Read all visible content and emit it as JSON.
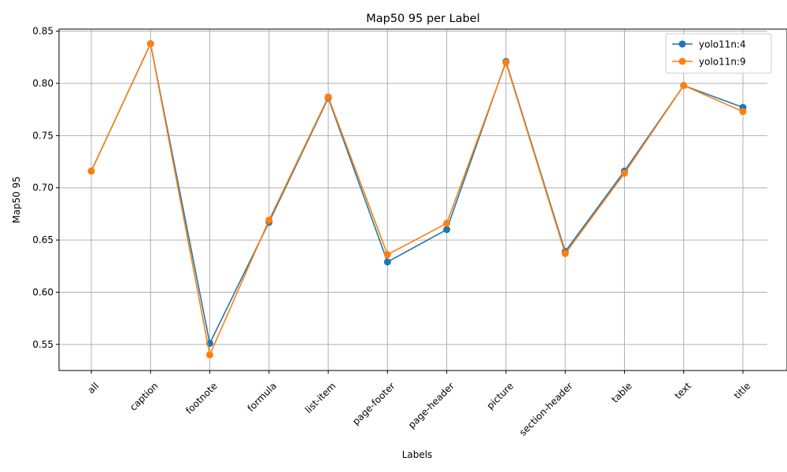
{
  "chart_data": {
    "type": "line",
    "title": "Map50 95 per Label",
    "xlabel": "Labels",
    "ylabel": "Map50 95",
    "categories": [
      "all",
      "caption",
      "footnote",
      "formula",
      "list-item",
      "page-footer",
      "page-header",
      "picture",
      "section-header",
      "table",
      "text",
      "title"
    ],
    "ylim": [
      0.525,
      0.852
    ],
    "yticks": [
      0.55,
      0.6,
      0.65,
      0.7,
      0.75,
      0.8,
      0.85
    ],
    "ytick_labels": [
      "0.55",
      "0.60",
      "0.65",
      "0.70",
      "0.75",
      "0.80",
      "0.85"
    ],
    "grid": true,
    "legend_position": "top-right",
    "series": [
      {
        "name": "yolo11n:4",
        "color": "#1f77b4",
        "values": [
          0.716,
          0.838,
          0.551,
          0.667,
          0.786,
          0.629,
          0.66,
          0.821,
          0.639,
          0.716,
          0.798,
          0.777
        ]
      },
      {
        "name": "yolo11n:9",
        "color": "#ff7f0e",
        "values": [
          0.716,
          0.838,
          0.54,
          0.669,
          0.787,
          0.636,
          0.666,
          0.82,
          0.637,
          0.714,
          0.798,
          0.773
        ]
      }
    ]
  }
}
